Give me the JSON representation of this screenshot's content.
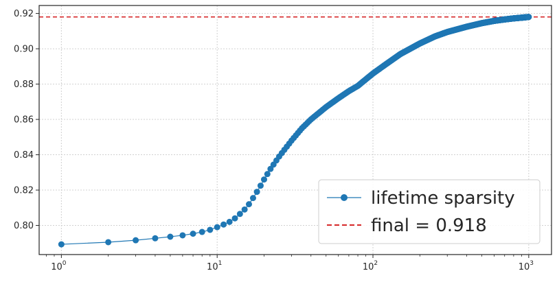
{
  "chart_data": {
    "type": "line",
    "title": "",
    "xlabel": "",
    "ylabel": "",
    "xscale": "log",
    "xlim": [
      0.72,
      1400
    ],
    "ylim": [
      0.7835,
      0.9245
    ],
    "grid": true,
    "legend_position": "lower-right",
    "x_ticks": [
      {
        "base": "10",
        "exp": "0",
        "value": 1
      },
      {
        "base": "10",
        "exp": "1",
        "value": 10
      },
      {
        "base": "10",
        "exp": "2",
        "value": 100
      },
      {
        "base": "10",
        "exp": "3",
        "value": 1000
      }
    ],
    "y_ticks": [
      "0.80",
      "0.82",
      "0.84",
      "0.86",
      "0.88",
      "0.90",
      "0.92"
    ],
    "series": [
      {
        "name": "lifetime sparsity",
        "color": "#1f77b4",
        "marker": "circle",
        "x_range": [
          1,
          1000
        ],
        "points": [
          [
            1,
            0.7893
          ],
          [
            2,
            0.7905
          ],
          [
            3,
            0.7916
          ],
          [
            4,
            0.7927
          ],
          [
            5,
            0.7936
          ],
          [
            6,
            0.7944
          ],
          [
            7,
            0.7953
          ],
          [
            8,
            0.7963
          ],
          [
            9,
            0.7975
          ],
          [
            10,
            0.799
          ],
          [
            11,
            0.8005
          ],
          [
            12,
            0.802
          ],
          [
            13,
            0.804
          ],
          [
            14,
            0.8065
          ],
          [
            15,
            0.809
          ],
          [
            16,
            0.812
          ],
          [
            17,
            0.8155
          ],
          [
            18,
            0.819
          ],
          [
            19,
            0.8225
          ],
          [
            20,
            0.826
          ],
          [
            22,
            0.832
          ],
          [
            25,
            0.839
          ],
          [
            30,
            0.848
          ],
          [
            35,
            0.855
          ],
          [
            40,
            0.86
          ],
          [
            50,
            0.867
          ],
          [
            60,
            0.872
          ],
          [
            70,
            0.876
          ],
          [
            80,
            0.879
          ],
          [
            100,
            0.886
          ],
          [
            120,
            0.891
          ],
          [
            150,
            0.897
          ],
          [
            200,
            0.903
          ],
          [
            250,
            0.907
          ],
          [
            300,
            0.9095
          ],
          [
            400,
            0.9125
          ],
          [
            500,
            0.9145
          ],
          [
            600,
            0.9158
          ],
          [
            700,
            0.9166
          ],
          [
            800,
            0.9172
          ],
          [
            900,
            0.9176
          ],
          [
            1000,
            0.918
          ]
        ]
      }
    ],
    "reference_line": {
      "name": "final = 0.918",
      "value": 0.918,
      "color": "#d62728",
      "style": "dashed"
    }
  }
}
